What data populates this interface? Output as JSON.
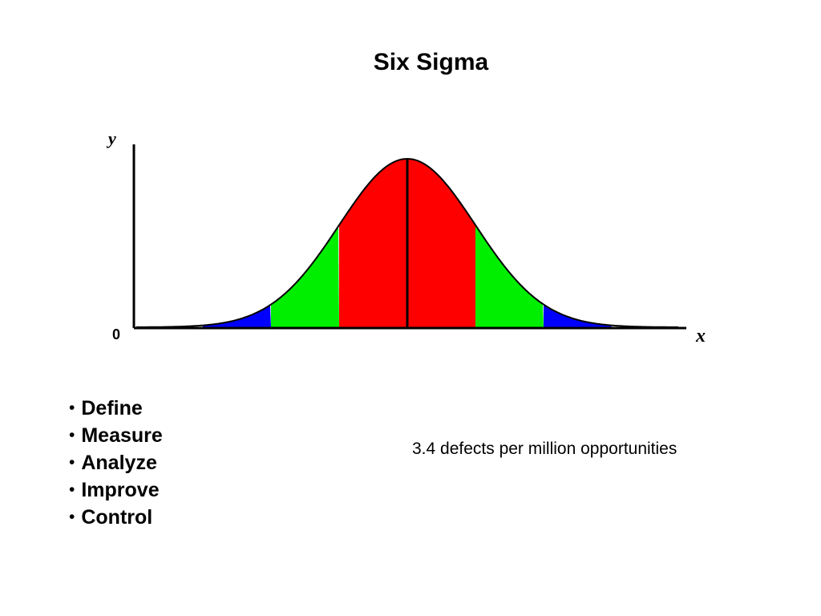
{
  "slide": {
    "title": "Six Sigma",
    "steps": [
      "Define",
      "Measure",
      "Analyze",
      "Improve",
      "Control"
    ],
    "note": "3.4 defects per million opportunities"
  },
  "figure": {
    "y_axis_label": "y",
    "x_axis_label": "x",
    "origin_label": "0",
    "bands": [
      {
        "name": "center",
        "from_sigma": -1,
        "to_sigma": 1,
        "color": "#ff0000"
      },
      {
        "name": "middle",
        "from_sigma": 1,
        "to_sigma": 2,
        "color": "#00ee00"
      },
      {
        "name": "outer",
        "from_sigma": 2,
        "to_sigma": 3,
        "color": "#0000ff"
      }
    ],
    "curve_color": "#000000"
  }
}
